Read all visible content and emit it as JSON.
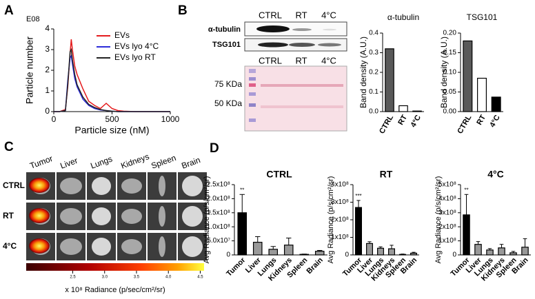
{
  "chart_data": [
    {
      "type": "line",
      "y_scale_label": "E08",
      "xlabel": "Particle size (nM)",
      "ylabel": "Particle number",
      "xlim": [
        0,
        1000
      ],
      "xticks": [
        0,
        500,
        1000
      ],
      "ylim": [
        0,
        4
      ],
      "yticks": [
        0,
        1,
        2,
        3,
        4
      ],
      "x": [
        0,
        50,
        100,
        120,
        140,
        150,
        160,
        180,
        200,
        250,
        300,
        350,
        400,
        450,
        500,
        550,
        600,
        700,
        800,
        1000
      ],
      "series": [
        {
          "name": "EVs",
          "color": "#e41a1c",
          "values": [
            0,
            0,
            0.1,
            1.2,
            2.8,
            3.5,
            3.0,
            2.2,
            1.8,
            1.1,
            0.5,
            0.3,
            0.15,
            0.4,
            0.15,
            0.05,
            0.02,
            0,
            0,
            0
          ]
        },
        {
          "name": "EVs lyo 4°C",
          "color": "#2b2bd9",
          "values": [
            0,
            0,
            0.05,
            1.5,
            2.6,
            2.7,
            2.3,
            1.6,
            1.2,
            0.6,
            0.3,
            0.15,
            0.08,
            0.05,
            0.02,
            0,
            0,
            0,
            0,
            0
          ]
        },
        {
          "name": "EVs lyo RT",
          "color": "#222222",
          "values": [
            0,
            0,
            0.05,
            1.3,
            2.9,
            3.0,
            2.5,
            1.8,
            1.3,
            0.7,
            0.35,
            0.2,
            0.1,
            0.05,
            0.02,
            0,
            0,
            0,
            0,
            0
          ]
        }
      ]
    },
    {
      "type": "bar",
      "title": "α-tubulin",
      "ylabel": "Band density (A.U.)",
      "categories": [
        "CTRL",
        "RT",
        "4°C"
      ],
      "values": [
        0.32,
        0.03,
        0.003
      ],
      "colors": [
        "#595959",
        "#ffffff",
        "#000000"
      ],
      "ylim": [
        0,
        0.4
      ],
      "yticks": [
        {
          "value": 0,
          "label": "0.0"
        },
        0.1,
        0.2,
        0.3,
        0.4
      ]
    },
    {
      "type": "bar",
      "title": "TSG101",
      "ylabel": "Band density (A.U.)",
      "categories": [
        "CTRL",
        "RT",
        "4°C"
      ],
      "values": [
        0.18,
        0.085,
        0.037
      ],
      "colors": [
        "#595959",
        "#ffffff",
        "#000000"
      ],
      "ylim": [
        0,
        0.2
      ],
      "yticks": [
        {
          "value": 0,
          "label": "0.00"
        },
        0.05,
        {
          "value": 0.1,
          "label": "0.10"
        },
        0.15,
        {
          "value": 0.2,
          "label": "0.20"
        }
      ]
    },
    {
      "type": "bar",
      "title": "CTRL",
      "ylabel": "Avg Radiance (p/s/cm²/sr)",
      "categories": [
        "Tumor",
        "Liver",
        "Lungs",
        "Kidneys",
        "Spleen",
        "Brain"
      ],
      "values": [
        150000000,
        45000000,
        20000000,
        35000000,
        2000000,
        13000000
      ],
      "errors": [
        65000000,
        20000000,
        10000000,
        25000000,
        1000000,
        3000000
      ],
      "colors": [
        "#000000",
        "#999999",
        "#999999",
        "#999999",
        "#999999",
        "#999999"
      ],
      "significance": "**",
      "ylim": [
        0,
        250000000
      ],
      "yticks": [
        0,
        {
          "value": 50000000,
          "label": "5.0x10⁷"
        },
        {
          "value": 100000000,
          "label": "1.0x10⁸"
        },
        {
          "value": 150000000,
          "label": "1.5x10⁸"
        },
        {
          "value": 200000000,
          "label": "2.0x10⁸"
        },
        {
          "value": 250000000,
          "label": "2.5x10⁸"
        }
      ]
    },
    {
      "type": "bar",
      "title": "RT",
      "ylabel": "Avg Radiance (p/s/cm²/sr)",
      "categories": [
        "Tumor",
        "Liver",
        "Lungs",
        "Kidneys",
        "Spleen",
        "Brain"
      ],
      "values": [
        270000000,
        65000000,
        38000000,
        35000000,
        3000000,
        10000000
      ],
      "errors": [
        40000000,
        10000000,
        8000000,
        20000000,
        2000000,
        5000000
      ],
      "colors": [
        "#000000",
        "#999999",
        "#999999",
        "#999999",
        "#999999",
        "#999999"
      ],
      "significance": "***",
      "ylim": [
        0,
        400000000
      ],
      "yticks": [
        0,
        {
          "value": 100000000,
          "label": "1x10⁸"
        },
        {
          "value": 200000000,
          "label": "2x10⁸"
        },
        {
          "value": 300000000,
          "label": "3x10⁸"
        },
        {
          "value": 400000000,
          "label": "4x10⁸"
        }
      ]
    },
    {
      "type": "bar",
      "title": "4°C",
      "ylabel": "Avg Radiance (p/s/cm²/sr)",
      "categories": [
        "Tumor",
        "Liver",
        "Lungs",
        "Kidneys",
        "Spleen",
        "Brain"
      ],
      "values": [
        285000000,
        75000000,
        35000000,
        50000000,
        15000000,
        55000000
      ],
      "errors": [
        145000000,
        20000000,
        10000000,
        25000000,
        10000000,
        60000000
      ],
      "colors": [
        "#000000",
        "#999999",
        "#999999",
        "#999999",
        "#999999",
        "#999999"
      ],
      "significance": "**",
      "ylim": [
        0,
        500000000
      ],
      "yticks": [
        0,
        {
          "value": 100000000,
          "label": "1x10⁸"
        },
        {
          "value": 200000000,
          "label": "2x10⁸"
        },
        {
          "value": 300000000,
          "label": "3x10⁸"
        },
        {
          "value": 400000000,
          "label": "4x10⁸"
        },
        {
          "value": 500000000,
          "label": "5x10⁸"
        }
      ]
    }
  ],
  "panels": {
    "letters": [
      "A",
      "B",
      "C",
      "D"
    ],
    "blot": {
      "lanes": [
        "CTRL",
        "RT",
        "4°C"
      ],
      "proteins": [
        "α-tubulin",
        "TSG101"
      ],
      "ponceau_lanes": [
        "CTRL",
        "RT",
        "4°C"
      ],
      "markers": [
        "75 KDa",
        "50 KDa"
      ]
    },
    "imaging": {
      "organs": [
        "Tumor",
        "Liver",
        "Lungs",
        "Kidneys",
        "Spleen",
        "Brain"
      ],
      "conditions": [
        "CTRL",
        "RT",
        "4°C"
      ],
      "colorbar": {
        "label": "x 10⁸ Radiance (p/sec/cm²/sr)",
        "range": [
          1.77,
          4.56
        ],
        "ticks": [
          2.5,
          {
            "value": 3,
            "label": "3.0"
          },
          3.5,
          {
            "value": 4,
            "label": "4.0"
          },
          4.5
        ]
      }
    }
  }
}
